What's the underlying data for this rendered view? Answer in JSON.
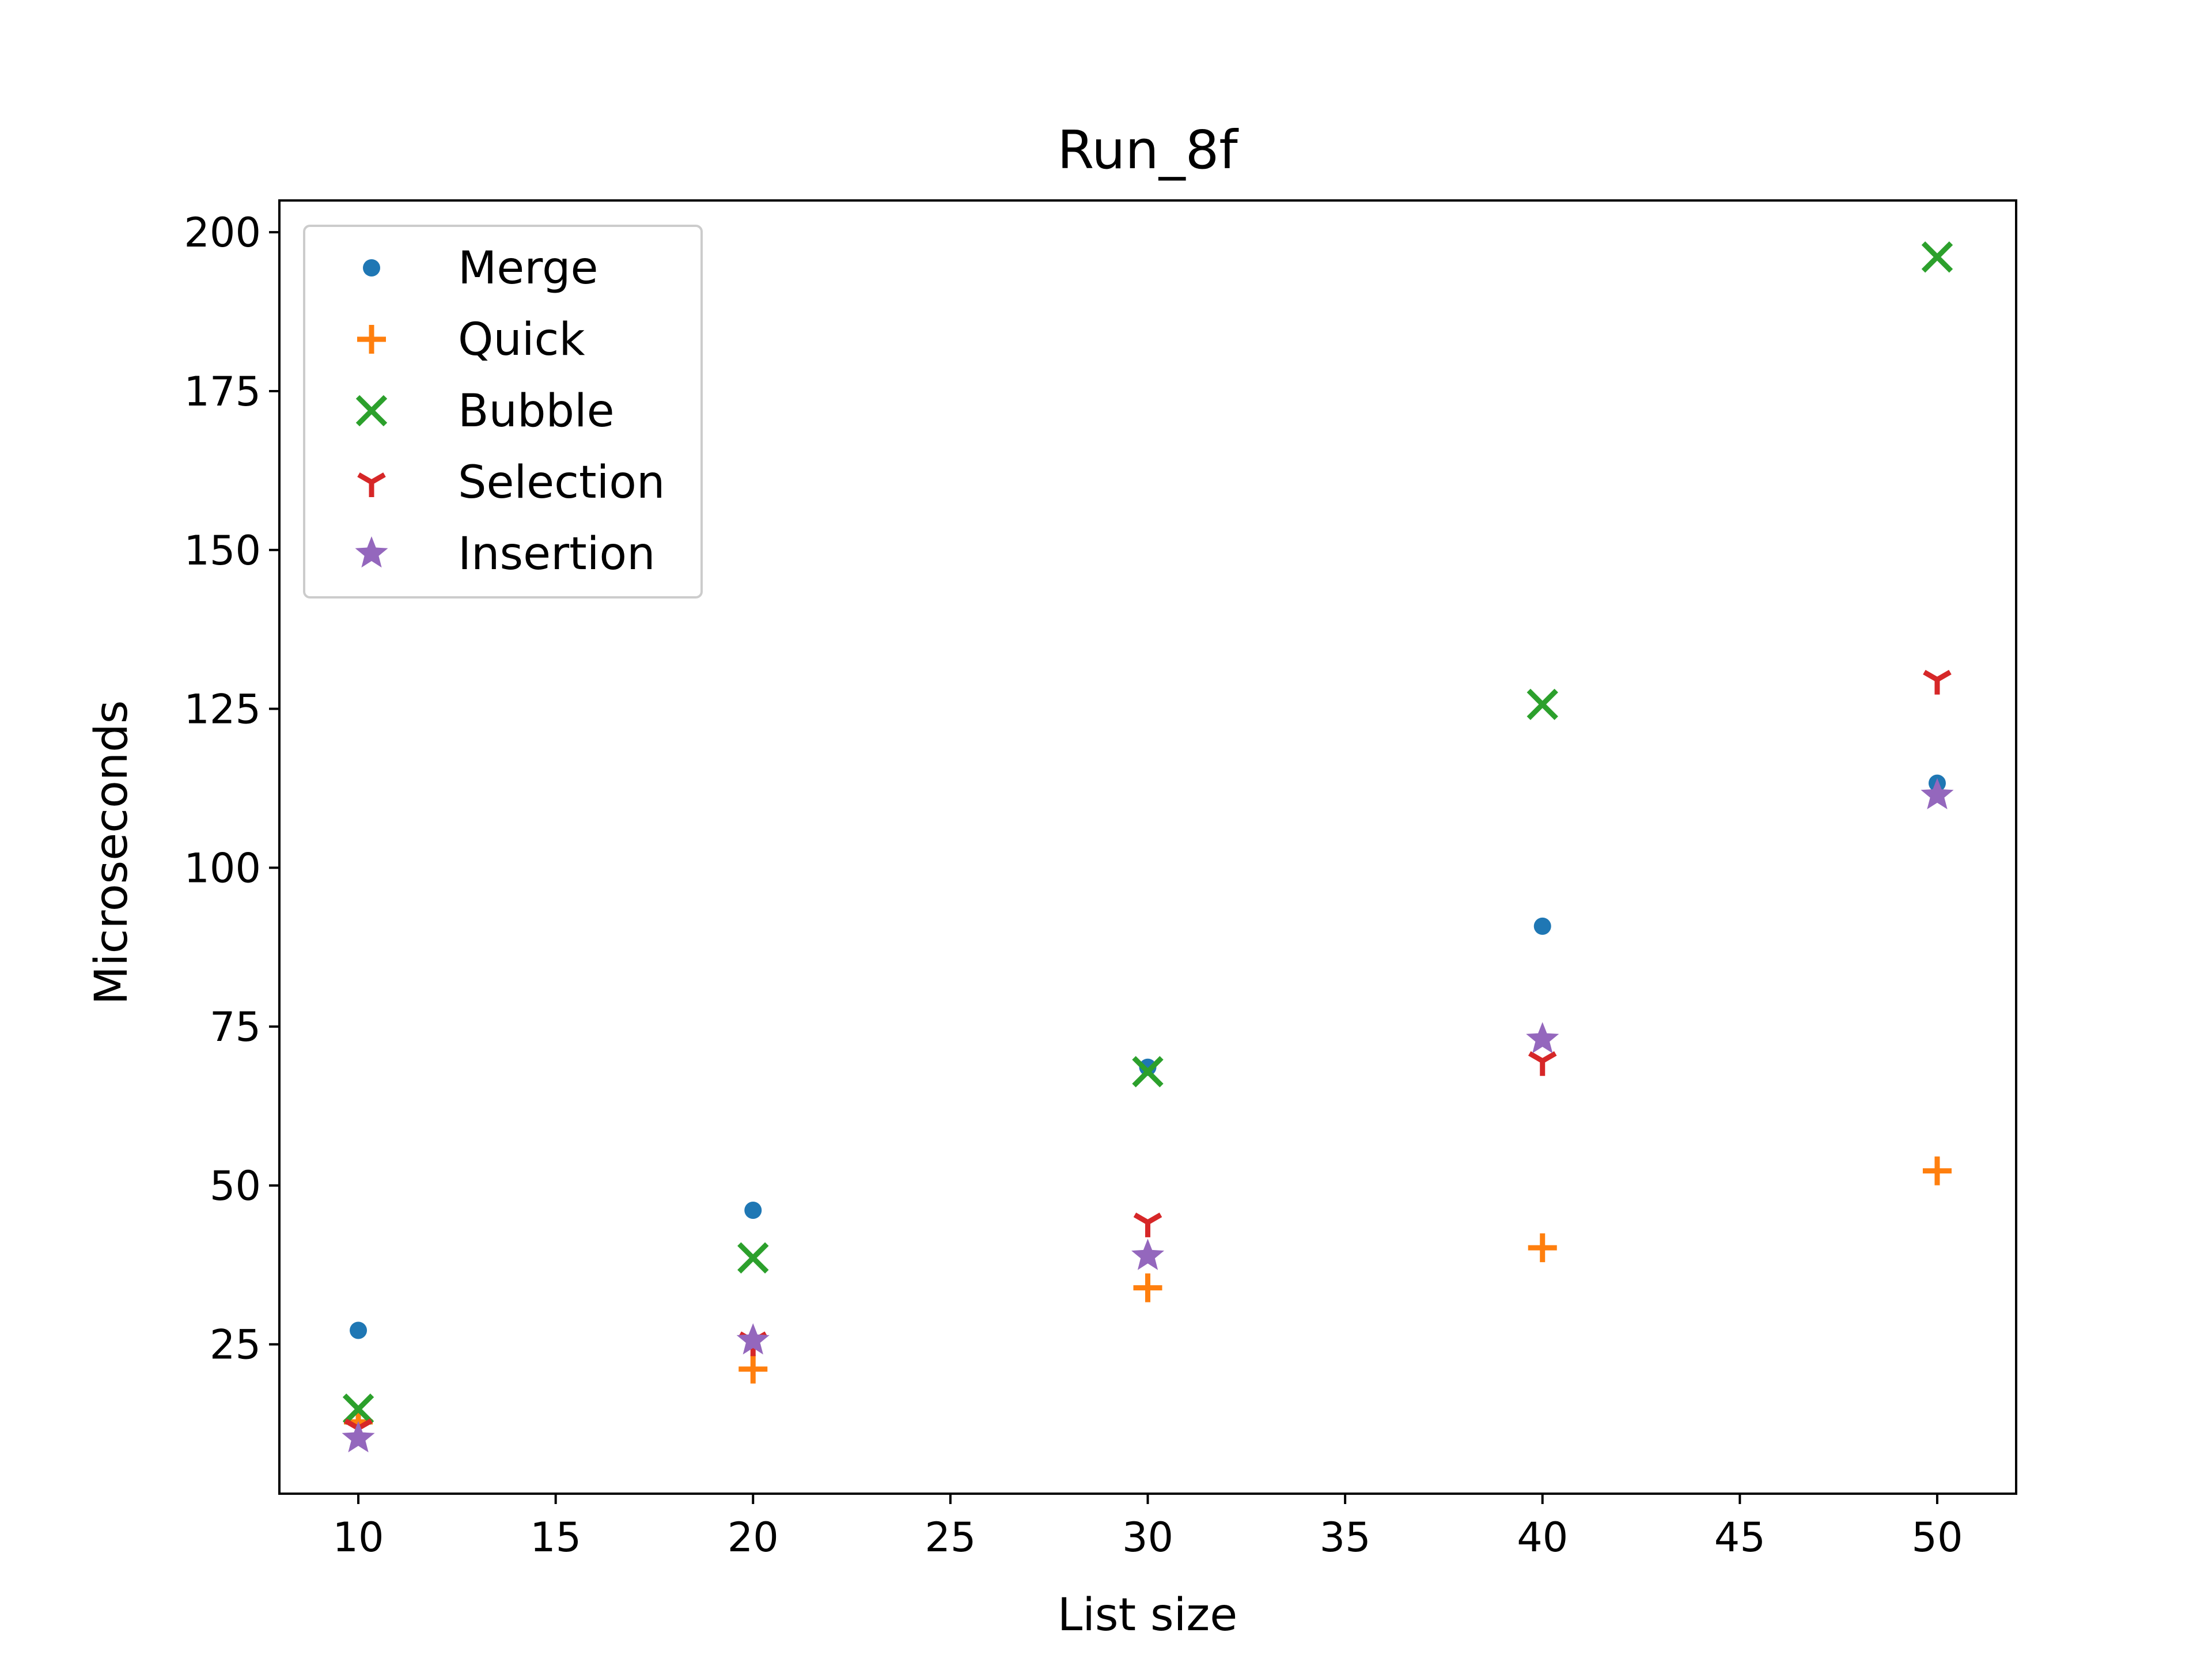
{
  "chart_data": {
    "type": "scatter",
    "title": "Run_8f",
    "xlabel": "List size",
    "ylabel": "Microseconds",
    "xlim": [
      8,
      52
    ],
    "ylim": [
      1.5,
      205
    ],
    "xticks": [
      10,
      15,
      20,
      25,
      30,
      35,
      40,
      45,
      50
    ],
    "yticks": [
      25,
      50,
      75,
      100,
      125,
      150,
      175,
      200
    ],
    "grid": false,
    "legend_position": "top-left",
    "x": [
      10,
      20,
      30,
      40,
      50
    ],
    "series": [
      {
        "name": "Merge",
        "marker": "dot",
        "color": "#1f77b4",
        "values": [
          27.2,
          46.1,
          68.6,
          90.8,
          113.3
        ]
      },
      {
        "name": "Quick",
        "marker": "plus",
        "color": "#ff7f0e",
        "values": [
          12.8,
          21.1,
          33.9,
          40.2,
          52.3
        ]
      },
      {
        "name": "Bubble",
        "marker": "x",
        "color": "#2ca02c",
        "values": [
          14.8,
          38.6,
          67.9,
          125.7,
          196.1
        ]
      },
      {
        "name": "Selection",
        "marker": "tri-down",
        "color": "#d62728",
        "values": [
          11.8,
          25.5,
          44.2,
          69.6,
          129.6
        ]
      },
      {
        "name": "Insertion",
        "marker": "star",
        "color": "#9467bd",
        "values": [
          10.2,
          25.6,
          38.9,
          73.0,
          111.4
        ]
      }
    ]
  }
}
